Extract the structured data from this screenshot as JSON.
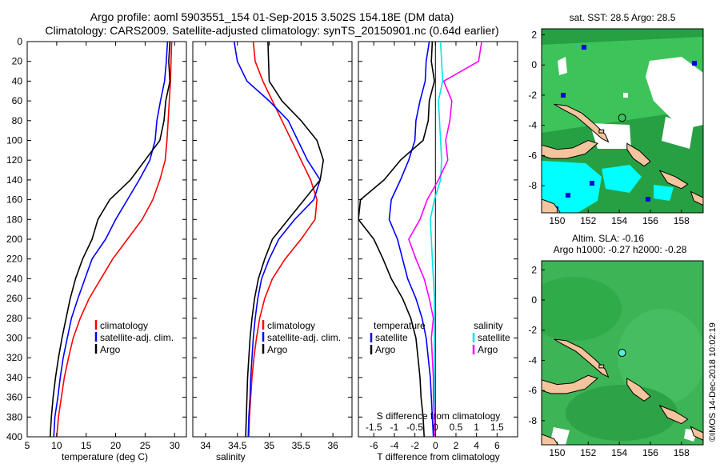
{
  "header": {
    "line1": "Argo profile: aoml 5903551_154 01-Sep-2015 3.502S 154.18E (DM data)",
    "line2": "Climatology: CARS2009. Satellite-adjusted climatology: synTS_20150901.nc (0.64d earlier)"
  },
  "depth_ticks": [
    0,
    20,
    40,
    60,
    80,
    100,
    120,
    140,
    160,
    180,
    200,
    220,
    240,
    260,
    280,
    300,
    320,
    340,
    360,
    380,
    400
  ],
  "colors": {
    "climatology": "#ff0000",
    "satellite_adj": "#0000ff",
    "argo": "#000000",
    "sal_argo": "#ff00ff",
    "sal_sat": "#00e5e5",
    "map_green": "#2fa84a",
    "land": "#f4c49c",
    "cyan": "#00ffff"
  },
  "chart_data": [
    {
      "type": "line",
      "id": "temperature",
      "xlabel": "temperature (deg C)",
      "xlim": [
        5,
        32
      ],
      "ylim": [
        0,
        400
      ],
      "xticks": [
        5,
        10,
        15,
        20,
        25,
        30
      ],
      "legend": {
        "placement": "bottom-right",
        "items": [
          "climatology",
          "satellite-adj. clim.",
          "Argo"
        ]
      },
      "series": [
        {
          "name": "climatology",
          "color": "#ff0000",
          "points": [
            [
              29.5,
              0
            ],
            [
              29.4,
              20
            ],
            [
              29.3,
              40
            ],
            [
              29.1,
              60
            ],
            [
              28.9,
              80
            ],
            [
              28.7,
              100
            ],
            [
              28.4,
              120
            ],
            [
              27.5,
              140
            ],
            [
              26.3,
              160
            ],
            [
              24.5,
              180
            ],
            [
              22,
              200
            ],
            [
              19.5,
              220
            ],
            [
              17.5,
              240
            ],
            [
              15.5,
              260
            ],
            [
              14,
              280
            ],
            [
              12.8,
              300
            ],
            [
              12,
              320
            ],
            [
              11.3,
              340
            ],
            [
              10.8,
              360
            ],
            [
              10.3,
              380
            ],
            [
              10,
              400
            ]
          ]
        },
        {
          "name": "satellite-adj. clim.",
          "color": "#0000ff",
          "points": [
            [
              28.8,
              0
            ],
            [
              28.6,
              20
            ],
            [
              28.3,
              40
            ],
            [
              27.6,
              60
            ],
            [
              27.0,
              80
            ],
            [
              26.7,
              100
            ],
            [
              25.8,
              120
            ],
            [
              24,
              140
            ],
            [
              22,
              160
            ],
            [
              20,
              180
            ],
            [
              18.3,
              200
            ],
            [
              16,
              220
            ],
            [
              14.8,
              240
            ],
            [
              13.6,
              260
            ],
            [
              12.5,
              280
            ],
            [
              11.8,
              300
            ],
            [
              11.1,
              320
            ],
            [
              10.6,
              340
            ],
            [
              10.2,
              360
            ],
            [
              9.7,
              380
            ],
            [
              9.5,
              400
            ]
          ]
        },
        {
          "name": "Argo",
          "color": "#000000",
          "points": [
            [
              29.2,
              0
            ],
            [
              29,
              20
            ],
            [
              29.2,
              40
            ],
            [
              28.5,
              60
            ],
            [
              28.2,
              80
            ],
            [
              27.5,
              100
            ],
            [
              25,
              120
            ],
            [
              22.5,
              140
            ],
            [
              19,
              160
            ],
            [
              17,
              180
            ],
            [
              16,
              200
            ],
            [
              14.4,
              220
            ],
            [
              13.2,
              240
            ],
            [
              12.3,
              260
            ],
            [
              11.6,
              280
            ],
            [
              10.9,
              300
            ],
            [
              10.3,
              320
            ],
            [
              9.8,
              340
            ],
            [
              9.4,
              360
            ],
            [
              9.1,
              380
            ],
            [
              8.9,
              400
            ]
          ]
        }
      ]
    },
    {
      "type": "line",
      "id": "salinity",
      "xlabel": "salinity",
      "xlim": [
        33.8,
        36.3
      ],
      "ylim": [
        0,
        400
      ],
      "xticks": [
        34,
        34.5,
        35,
        35.5,
        36
      ],
      "legend": {
        "placement": "bottom-right",
        "items": [
          "climatology",
          "satellite-adj. clim.",
          "Argo"
        ]
      },
      "series": [
        {
          "name": "climatology",
          "color": "#ff0000",
          "points": [
            [
              34.75,
              0
            ],
            [
              34.78,
              20
            ],
            [
              34.9,
              40
            ],
            [
              35.05,
              60
            ],
            [
              35.2,
              80
            ],
            [
              35.35,
              100
            ],
            [
              35.5,
              120
            ],
            [
              35.65,
              140
            ],
            [
              35.75,
              160
            ],
            [
              35.72,
              180
            ],
            [
              35.5,
              200
            ],
            [
              35.25,
              220
            ],
            [
              35.05,
              240
            ],
            [
              34.93,
              260
            ],
            [
              34.85,
              280
            ],
            [
              34.8,
              300
            ],
            [
              34.76,
              320
            ],
            [
              34.73,
              340
            ],
            [
              34.71,
              360
            ],
            [
              34.69,
              380
            ],
            [
              34.68,
              400
            ]
          ]
        },
        {
          "name": "satellite-adj. clim.",
          "color": "#0000ff",
          "points": [
            [
              34.45,
              0
            ],
            [
              34.5,
              20
            ],
            [
              34.65,
              40
            ],
            [
              35.0,
              60
            ],
            [
              35.3,
              80
            ],
            [
              35.45,
              100
            ],
            [
              35.6,
              120
            ],
            [
              35.8,
              140
            ],
            [
              35.7,
              160
            ],
            [
              35.4,
              180
            ],
            [
              35.15,
              200
            ],
            [
              35.0,
              220
            ],
            [
              34.88,
              240
            ],
            [
              34.82,
              260
            ],
            [
              34.78,
              280
            ],
            [
              34.75,
              300
            ],
            [
              34.73,
              320
            ],
            [
              34.71,
              340
            ],
            [
              34.7,
              360
            ],
            [
              34.68,
              380
            ],
            [
              34.67,
              400
            ]
          ]
        },
        {
          "name": "Argo",
          "color": "#000000",
          "points": [
            [
              34.98,
              0
            ],
            [
              34.99,
              20
            ],
            [
              35.0,
              40
            ],
            [
              35.2,
              60
            ],
            [
              35.5,
              80
            ],
            [
              35.75,
              100
            ],
            [
              35.85,
              120
            ],
            [
              35.8,
              140
            ],
            [
              35.55,
              160
            ],
            [
              35.3,
              180
            ],
            [
              35.05,
              200
            ],
            [
              34.93,
              220
            ],
            [
              34.83,
              240
            ],
            [
              34.77,
              260
            ],
            [
              34.73,
              280
            ],
            [
              34.7,
              300
            ],
            [
              34.68,
              320
            ],
            [
              34.66,
              340
            ],
            [
              34.65,
              360
            ],
            [
              34.64,
              380
            ],
            [
              34.63,
              400
            ]
          ]
        }
      ]
    },
    {
      "type": "line",
      "id": "difference",
      "xlabel": "T difference from climatology",
      "secondary_label": "S difference from climatology",
      "xlim": [
        -7.5,
        8
      ],
      "ylim": [
        0,
        400
      ],
      "xticks": [
        -6,
        -4,
        -2,
        0,
        2,
        4,
        6
      ],
      "s_ticks": [
        "-1.5",
        "-1",
        "-0.5",
        "0",
        "0.5",
        "1",
        "1.5"
      ],
      "legend": {
        "placement": "bottom",
        "headers": [
          "temperature",
          "salinity"
        ],
        "items": [
          "satellite",
          "Argo",
          "satellite",
          "Argo"
        ]
      },
      "series": [
        {
          "name": "temperature satellite",
          "color": "#0000ff",
          "points": [
            [
              -0.6,
              0
            ],
            [
              -0.9,
              20
            ],
            [
              -1.0,
              40
            ],
            [
              -1.5,
              60
            ],
            [
              -1.9,
              80
            ],
            [
              -2.0,
              100
            ],
            [
              -2.6,
              120
            ],
            [
              -3.4,
              140
            ],
            [
              -4.3,
              160
            ],
            [
              -4.5,
              180
            ],
            [
              -3.7,
              200
            ],
            [
              -3.2,
              220
            ],
            [
              -2.7,
              240
            ],
            [
              -1.9,
              260
            ],
            [
              -1.3,
              280
            ],
            [
              -0.9,
              300
            ],
            [
              -0.7,
              320
            ],
            [
              -0.5,
              340
            ],
            [
              -0.4,
              360
            ],
            [
              -0.3,
              380
            ],
            [
              -0.2,
              400
            ]
          ]
        },
        {
          "name": "temperature Argo",
          "color": "#000000",
          "points": [
            [
              -0.3,
              0
            ],
            [
              -0.4,
              20
            ],
            [
              -0.1,
              40
            ],
            [
              -0.6,
              60
            ],
            [
              -0.7,
              80
            ],
            [
              -1.2,
              100
            ],
            [
              -3.4,
              120
            ],
            [
              -5.0,
              140
            ],
            [
              -7.3,
              160
            ],
            [
              -7.5,
              180
            ],
            [
              -6.0,
              200
            ],
            [
              -5.1,
              220
            ],
            [
              -4.3,
              240
            ],
            [
              -3.2,
              260
            ],
            [
              -2.4,
              280
            ],
            [
              -1.9,
              300
            ],
            [
              -1.7,
              320
            ],
            [
              -1.5,
              340
            ],
            [
              -1.4,
              360
            ],
            [
              -1.2,
              380
            ],
            [
              -1.1,
              400
            ]
          ]
        },
        {
          "name": "salinity satellite",
          "color": "#00e5e5",
          "points": [
            [
              0.5,
              0
            ],
            [
              0.6,
              20
            ],
            [
              0.7,
              40
            ],
            [
              0.3,
              60
            ],
            [
              0.4,
              80
            ],
            [
              0.5,
              100
            ],
            [
              0.6,
              120
            ],
            [
              0.5,
              140
            ],
            [
              -0.1,
              160
            ],
            [
              -0.5,
              180
            ],
            [
              -0.4,
              200
            ],
            [
              -0.3,
              220
            ],
            [
              -0.2,
              240
            ],
            [
              -0.1,
              260
            ],
            [
              -0.1,
              280
            ],
            [
              -0.1,
              300
            ],
            [
              -0.1,
              320
            ],
            [
              -0.1,
              340
            ],
            [
              -0.1,
              360
            ],
            [
              -0.1,
              380
            ],
            [
              -0.1,
              400
            ]
          ]
        },
        {
          "name": "salinity Argo",
          "color": "#ff00ff",
          "points": [
            [
              4.5,
              0
            ],
            [
              4.2,
              20
            ],
            [
              0.8,
              40
            ],
            [
              1.6,
              60
            ],
            [
              1.4,
              80
            ],
            [
              1.0,
              100
            ],
            [
              1.2,
              120
            ],
            [
              0.3,
              140
            ],
            [
              -0.8,
              160
            ],
            [
              -1.5,
              180
            ],
            [
              -2.6,
              200
            ],
            [
              -1.9,
              220
            ],
            [
              -1.1,
              240
            ],
            [
              -0.6,
              260
            ],
            [
              -0.2,
              280
            ],
            [
              -0.4,
              300
            ],
            [
              -0.3,
              320
            ],
            [
              -0.2,
              340
            ],
            [
              -0.2,
              360
            ],
            [
              -0.1,
              380
            ],
            [
              -0.1,
              400
            ]
          ]
        }
      ]
    }
  ],
  "maps": {
    "top_title": "sat. SST: 28.5 Argo: 28.5",
    "bottom_title1": "Altim. SLA: -0.16",
    "bottom_title2": "Argo h1000: -0.27 h2000: -0.28",
    "xticks": [
      150,
      152,
      154,
      156,
      158
    ],
    "yticks": [
      2,
      0,
      -2,
      -4,
      -6,
      -8
    ],
    "xlim": [
      149,
      159.4
    ],
    "ylim_top": [
      -9.8,
      2.4
    ],
    "ylim_bottom": [
      -9.6,
      2.6
    ],
    "argo_lon": 154.18,
    "argo_lat": -3.502
  },
  "stamp": "©IMOS 14-Dec-2018 10:02:19"
}
